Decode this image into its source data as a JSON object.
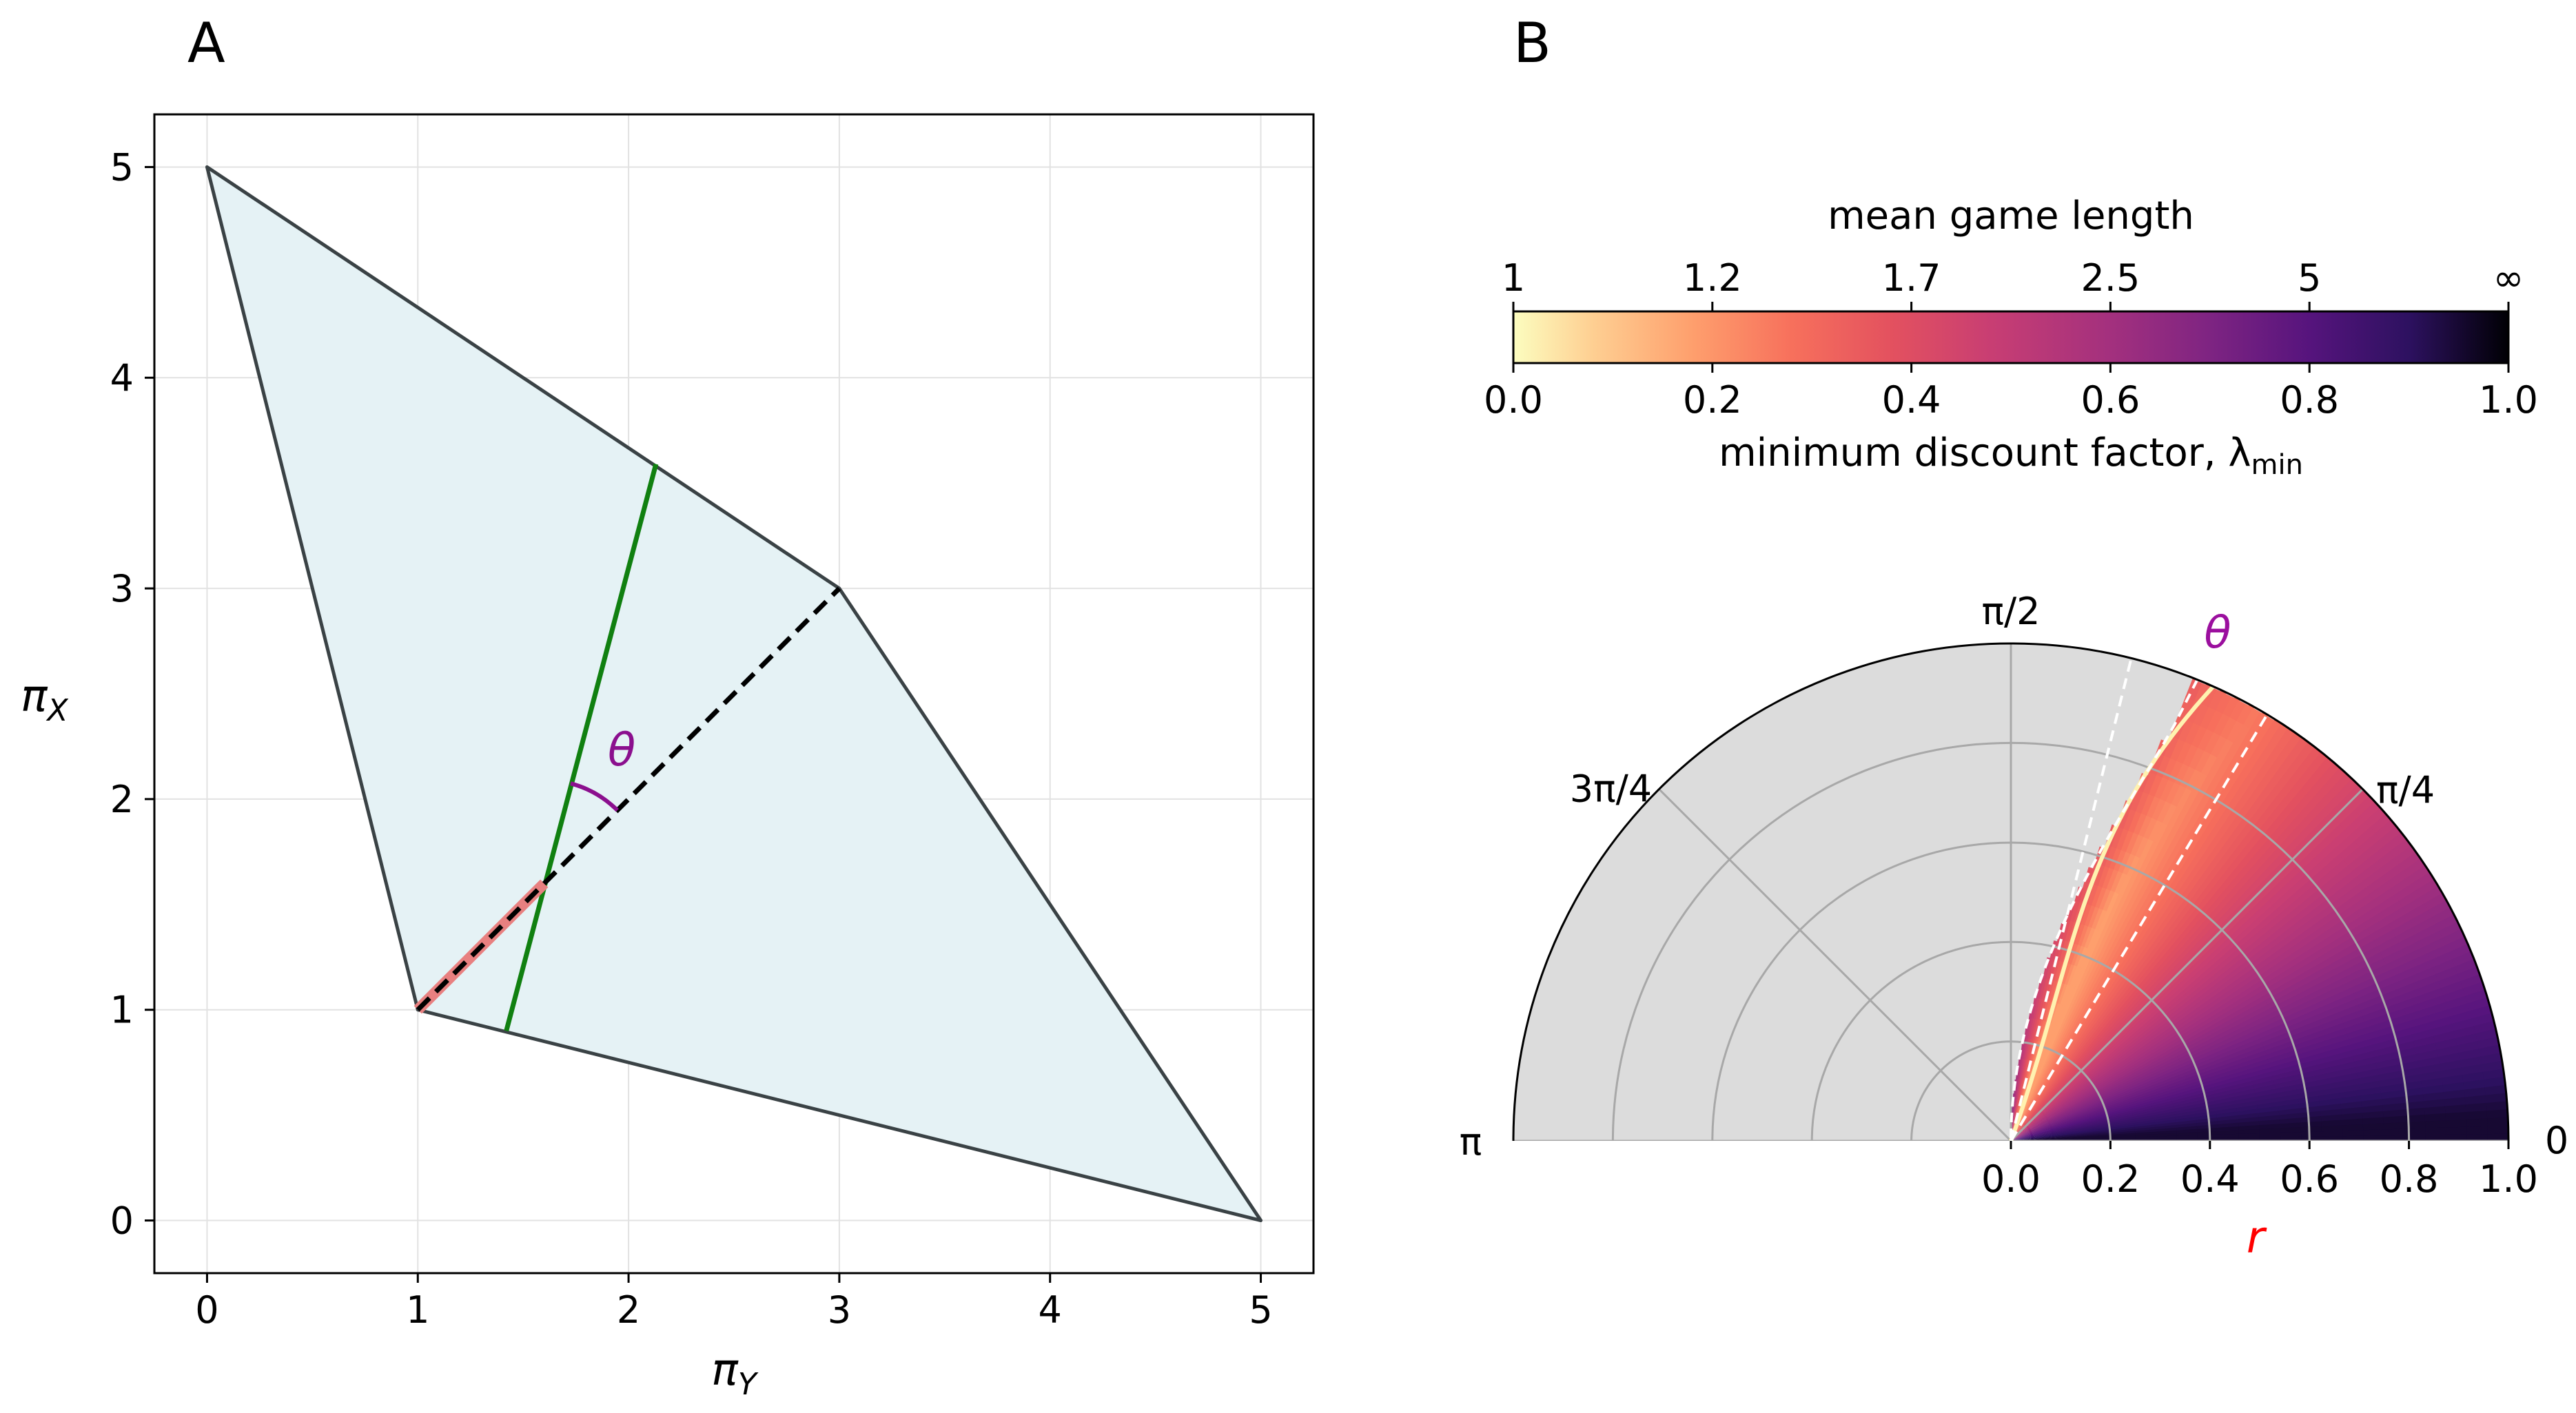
{
  "panels": {
    "a_letter": "A",
    "b_letter": "B"
  },
  "chart_data": [
    {
      "panel": "A",
      "type": "line",
      "title": "",
      "xlabel": "π_Y",
      "ylabel": "π_X",
      "xlabel_main": "π",
      "xlabel_sub": "Y",
      "ylabel_main": "π",
      "ylabel_sub": "X",
      "xlim": [
        -0.25,
        5.25
      ],
      "ylim": [
        -0.25,
        5.25
      ],
      "xticks": [
        0,
        1,
        2,
        3,
        4,
        5
      ],
      "yticks": [
        0,
        1,
        2,
        3,
        4,
        5
      ],
      "grid": true,
      "polygon": [
        [
          0,
          5
        ],
        [
          3,
          3
        ],
        [
          5,
          0
        ],
        [
          1,
          1
        ]
      ],
      "polygon_fill": "#e5f2f5",
      "polygon_edge": "#3a4245",
      "series": [
        {
          "name": "dashed-segment",
          "color": "#000000",
          "style": "dashed",
          "x": [
            1,
            3
          ],
          "y": [
            1,
            3
          ]
        },
        {
          "name": "red-segment",
          "color": "#e88080",
          "style": "solid",
          "x": [
            1,
            1.6
          ],
          "y": [
            1,
            1.6
          ]
        },
        {
          "name": "green-line",
          "color": "#108010",
          "style": "solid",
          "x": [
            1.42,
            2.13
          ],
          "y": [
            0.9,
            3.59
          ]
        }
      ],
      "annotations": [
        {
          "text": "θ",
          "x": 1.98,
          "y": 2.24,
          "color": "#8b0f8e"
        }
      ]
    },
    {
      "panel": "B",
      "type": "heatmap",
      "colormap": "magma_r",
      "colorbar": {
        "label": "minimum discount factor, λ",
        "label_sub": "min",
        "ticks": [
          0.0,
          0.2,
          0.4,
          0.6,
          0.8,
          1.0
        ],
        "tick_labels": [
          "0.0",
          "0.2",
          "0.4",
          "0.6",
          "0.8",
          "1.0"
        ],
        "top_title": "mean game length",
        "top_positions": [
          0.0,
          0.2,
          0.4,
          0.6,
          0.8,
          1.0
        ],
        "top_labels": [
          "1",
          "1.2",
          "1.7",
          "2.5",
          "5",
          "∞"
        ]
      },
      "polar": {
        "theta_ticks_rad": [
          0,
          0.7854,
          1.5708,
          2.3562,
          3.1416
        ],
        "theta_labels": [
          "0",
          "π/4",
          "π/2",
          "3π/4",
          "π"
        ],
        "r_ticks": [
          0.0,
          0.2,
          0.4,
          0.6,
          0.8,
          1.0
        ],
        "r_tick_labels": [
          "0.0",
          "0.2",
          "0.4",
          "0.6",
          "0.8",
          "1.0"
        ],
        "rlim": [
          0,
          1
        ],
        "thetalim_deg": [
          0,
          180
        ],
        "r_label": "r",
        "r_label_color": "#ff0000",
        "theta_label": "θ",
        "theta_label_color": "#9b0f9e",
        "undefined_region_color": "#dcdcdc",
        "white_curve_color": "#fff2b0",
        "dashed_boundary_color": "#ffffff"
      }
    }
  ]
}
